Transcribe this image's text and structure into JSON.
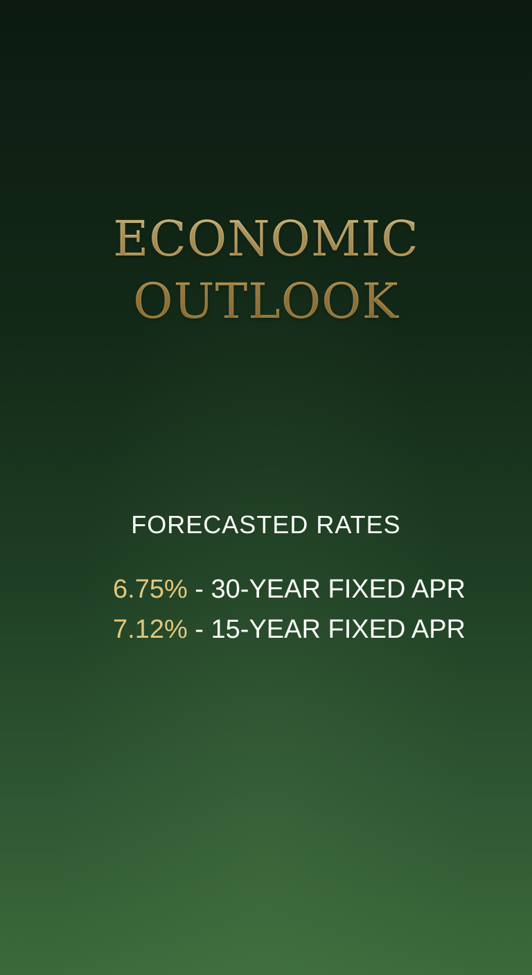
{
  "title": {
    "line1": "ECONOMIC",
    "line2": "OUTLOOK"
  },
  "section": {
    "heading": "FORECASTED RATES"
  },
  "rates": [
    {
      "value": "6.75%",
      "separator": " - ",
      "label": "30-YEAR FIXED APR"
    },
    {
      "value": "7.12%",
      "separator": " - ",
      "label": "15-YEAR FIXED APR"
    }
  ],
  "colors": {
    "gold": "#c9a962",
    "rate_highlight": "#e2c77d",
    "text": "#ffffff",
    "background_top": "#0c1a11",
    "background_bottom": "#3c6a3b"
  }
}
